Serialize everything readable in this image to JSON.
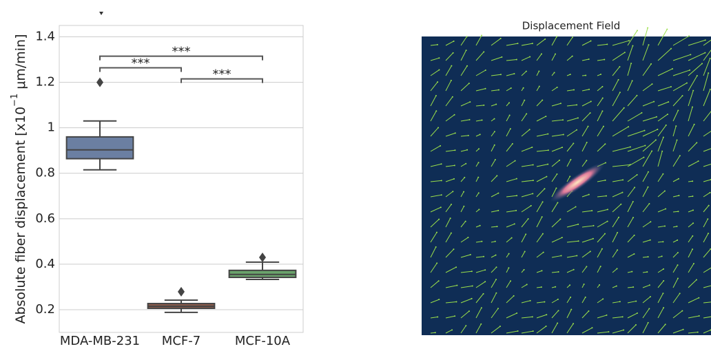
{
  "chart_data": [
    {
      "type": "box",
      "ylabel": [
        "Absolute fiber displacement [x10",
        "−1",
        " μm/min]"
      ],
      "categories": [
        "MDA-MB-231",
        "MCF-7",
        "MCF-10A"
      ],
      "colors": [
        "#6b7fa2",
        "#8b5b4b",
        "#6aa36b"
      ],
      "boxes": [
        {
          "whislo": 0.815,
          "q1": 0.864,
          "med": 0.903,
          "q3": 0.96,
          "whishi": 1.03,
          "fliers": [
            1.2
          ]
        },
        {
          "whislo": 0.188,
          "q1": 0.206,
          "med": 0.215,
          "q3": 0.227,
          "whishi": 0.242,
          "fliers": [
            0.279
          ]
        },
        {
          "whislo": 0.333,
          "q1": 0.342,
          "med": 0.355,
          "q3": 0.373,
          "whishi": 0.409,
          "fliers": [
            0.43
          ]
        }
      ],
      "significance": [
        {
          "from": 0,
          "to": 2,
          "y": 1.315,
          "label": "***"
        },
        {
          "from": 0,
          "to": 1,
          "y": 1.264,
          "label": "***"
        },
        {
          "from": 1,
          "to": 2,
          "y": 1.215,
          "label": "***"
        }
      ],
      "ylim": [
        0.1,
        1.45
      ],
      "yticks": [
        0.2,
        0.4,
        0.6,
        0.8,
        1.0,
        1.2,
        1.4
      ],
      "grid": true
    },
    {
      "type": "image",
      "title": "Displacement Field"
    }
  ]
}
